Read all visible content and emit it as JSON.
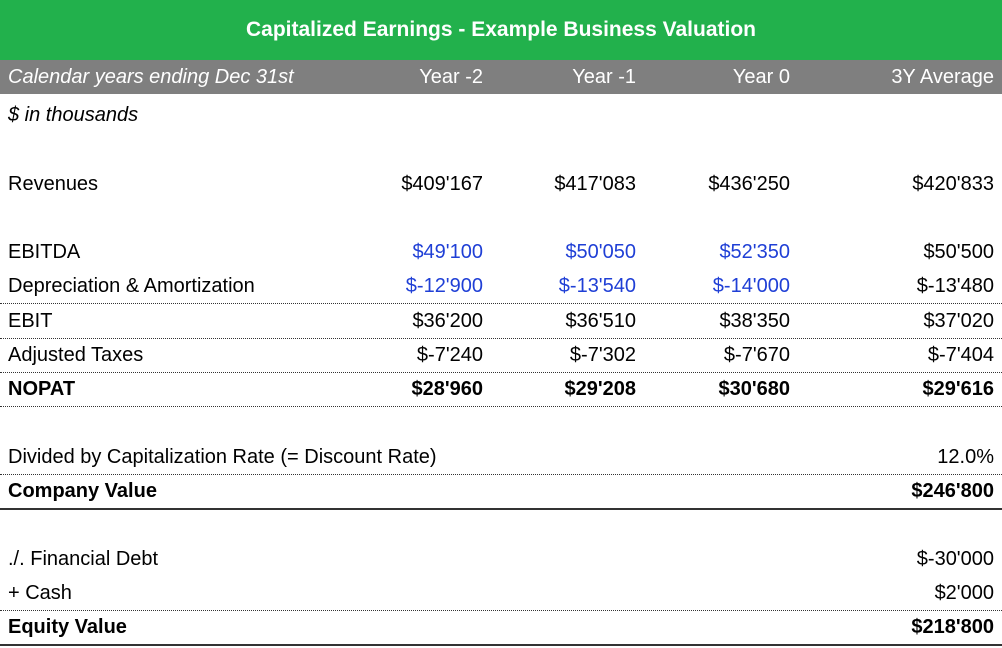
{
  "title": "Capitalized Earnings - Example Business Valuation",
  "header": {
    "label": "Calendar years ending Dec 31st",
    "year_m2": "Year -2",
    "year_m1": "Year -1",
    "year_0": "Year 0",
    "avg": "3Y Average"
  },
  "units": "$ in thousands",
  "rows": {
    "revenues": {
      "label": "Revenues",
      "y2": "$409'167",
      "y1": "$417'083",
      "y0": "$436'250",
      "avg": "$420'833"
    },
    "ebitda": {
      "label": "EBITDA",
      "y2": "$49'100",
      "y1": "$50'050",
      "y0": "$52'350",
      "avg": "$50'500"
    },
    "da": {
      "label": "Depreciation & Amortization",
      "y2": "$-12'900",
      "y1": "$-13'540",
      "y0": "$-14'000",
      "avg": "$-13'480"
    },
    "ebit": {
      "label": "EBIT",
      "y2": "$36'200",
      "y1": "$36'510",
      "y0": "$38'350",
      "avg": "$37'020"
    },
    "taxes": {
      "label": "Adjusted Taxes",
      "y2": "$-7'240",
      "y1": "$-7'302",
      "y0": "$-7'670",
      "avg": "$-7'404"
    },
    "nopat": {
      "label": "NOPAT",
      "y2": "$28'960",
      "y1": "$29'208",
      "y0": "$30'680",
      "avg": "$29'616"
    },
    "cap_rate": {
      "label": "Divided by Capitalization Rate (= Discount Rate)",
      "avg": "12.0%"
    },
    "company_value": {
      "label": "Company Value",
      "avg": "$246'800"
    },
    "debt": {
      "label": "./. Financial Debt",
      "avg": "$-30'000"
    },
    "cash": {
      "label": "+ Cash",
      "avg": "$2'000"
    },
    "equity_value": {
      "label": "Equity Value",
      "avg": "$218'800"
    }
  },
  "colors": {
    "title_bg": "#22b14c",
    "header_bg": "#7f7f7f",
    "input_blue": "#1f3fd6"
  }
}
